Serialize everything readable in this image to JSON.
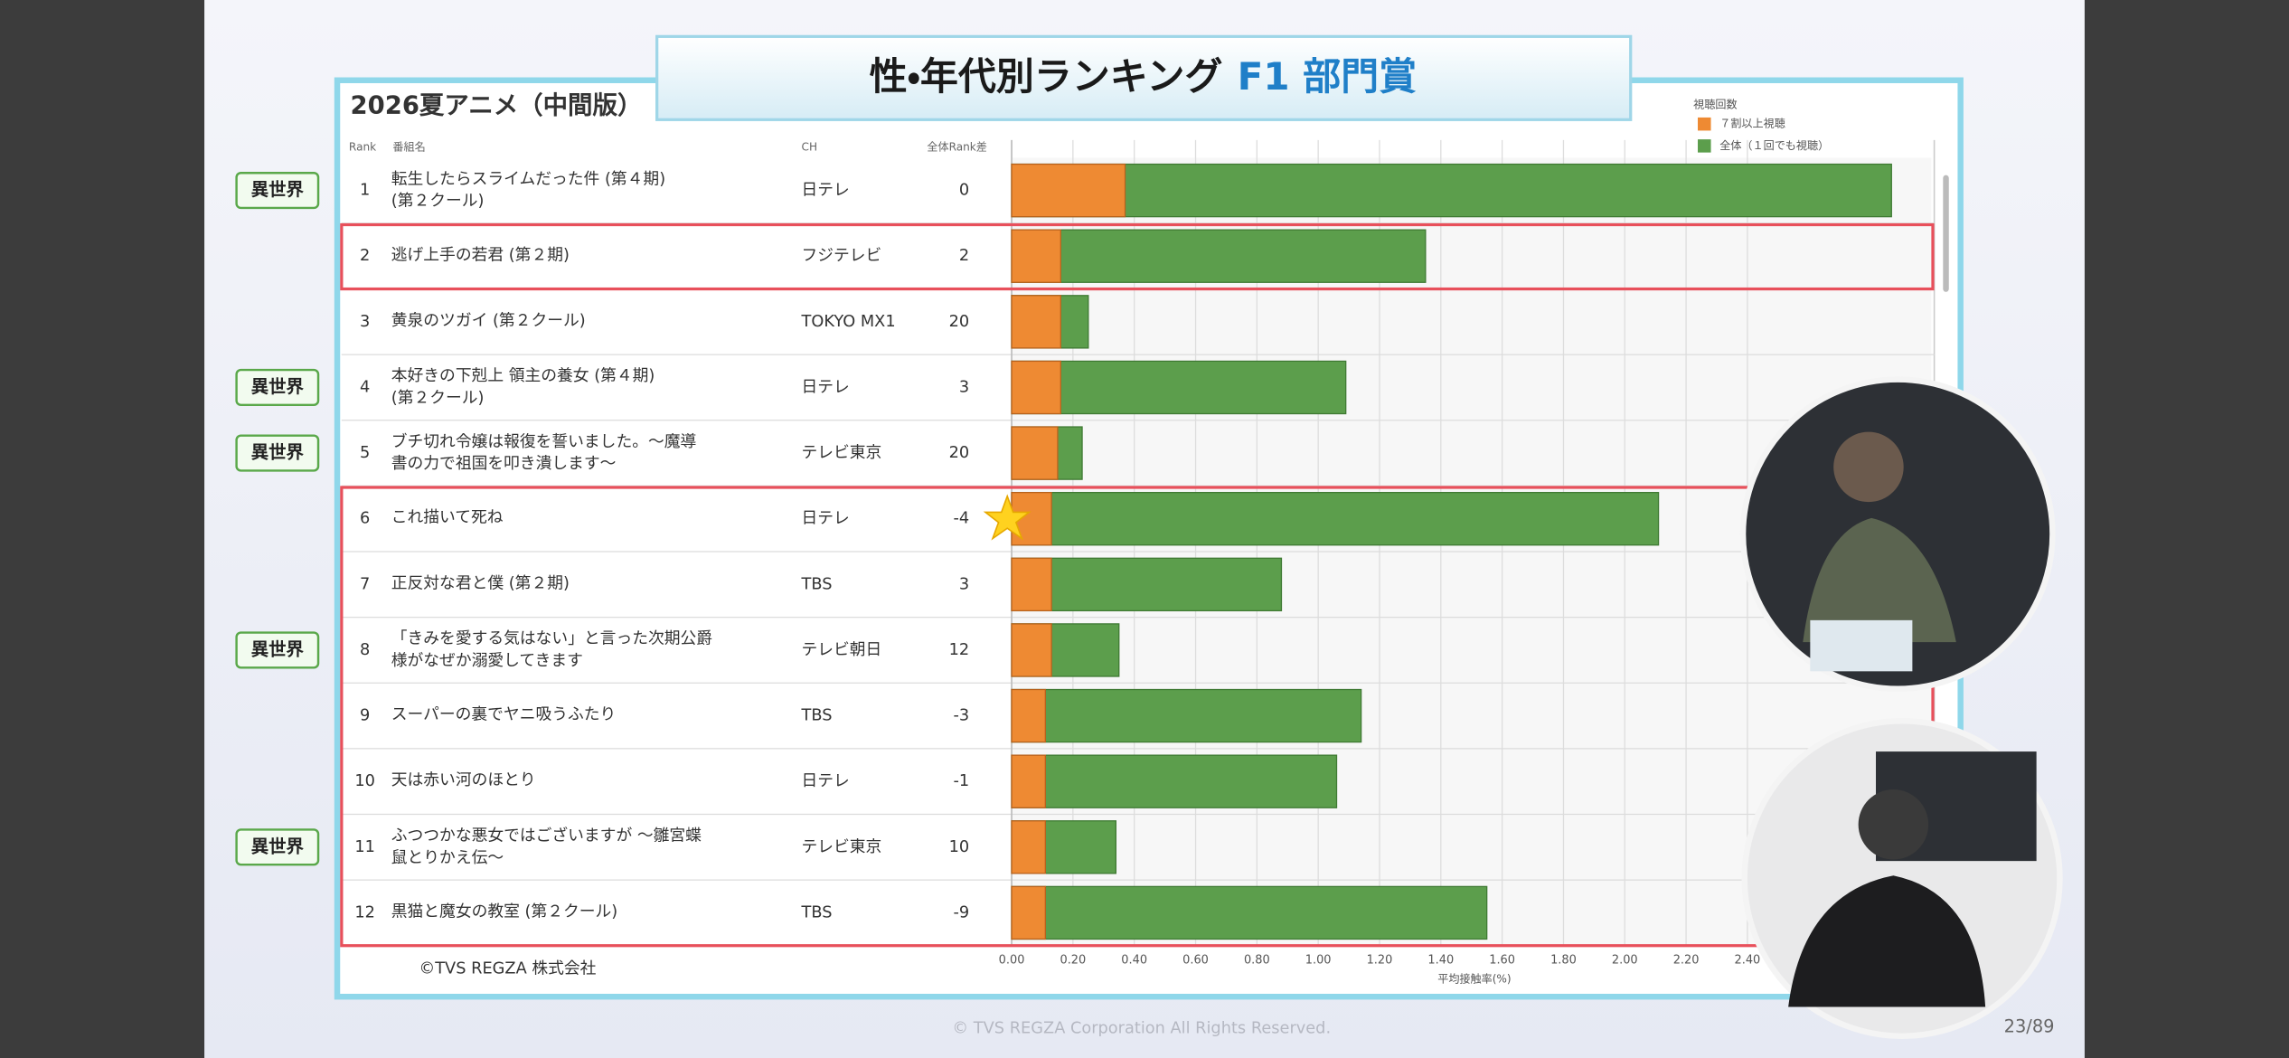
{
  "header": {
    "title_main": "性・年代別ランキング",
    "title_accent": "F1 部門賞",
    "footer": "© TVS REGZA Corporation  All Rights Reserved.",
    "page": "23/89"
  },
  "chart_data": {
    "type": "bar",
    "orientation": "horizontal",
    "title": "2026夏アニメ（中間版）",
    "columns": {
      "rank": "Rank",
      "name": "番組名",
      "ch": "CH",
      "diff": "全体Rank差"
    },
    "ranks": [
      1,
      2,
      3,
      4,
      5,
      6,
      7,
      8,
      9,
      10,
      11,
      12
    ],
    "categories": [
      "転生したらスライムだった件 (第４期)\n(第２クール)",
      "逃げ上手の若君 (第２期)",
      "黄泉のツガイ (第２クール)",
      "本好きの下剋上 領主の養女 (第４期)\n(第２クール)",
      "ブチ切れ令嬢は報復を誓いました。～魔導\n書の力で祖国を叩き潰します～",
      "これ描いて死ね",
      "正反対な君と僕 (第２期)",
      "「きみを愛する気はない」と言った次期公爵\n様がなぜか溺愛してきます",
      "スーパーの裏でヤニ吸うふたり",
      "天は赤い河のほとり",
      "ふつつかな悪女ではございますが ～雛宮蝶\n鼠とりかえ伝～",
      "黒猫と魔女の教室 (第２クール)"
    ],
    "channels": [
      "日テレ",
      "フジテレビ",
      "TOKYO MX1",
      "日テレ",
      "テレビ東京",
      "日テレ",
      "TBS",
      "テレビ朝日",
      "TBS",
      "日テレ",
      "テレビ東京",
      "TBS"
    ],
    "rank_diff": [
      0,
      2,
      20,
      3,
      20,
      -4,
      3,
      12,
      -3,
      -1,
      10,
      -9
    ],
    "tags": [
      "異世界",
      null,
      null,
      "異世界",
      "異世界",
      null,
      null,
      "異世界",
      null,
      null,
      "異世界",
      null
    ],
    "legend_title": "視聴回数",
    "series": [
      {
        "name": "７割以上視聴",
        "color": "#ee8a33",
        "values": [
          0.37,
          0.16,
          0.16,
          0.16,
          0.15,
          0.13,
          0.13,
          0.13,
          0.11,
          0.11,
          0.11,
          0.11
        ]
      },
      {
        "name": "全体（１回でも視聴）",
        "color": "#5c9e4c",
        "values": [
          2.87,
          1.35,
          0.25,
          1.09,
          0.23,
          2.11,
          0.88,
          0.35,
          1.14,
          1.06,
          0.34,
          1.55
        ]
      }
    ],
    "xlabel": "平均接触率(%)",
    "xlim": [
      0,
      3
    ],
    "xticks": [
      {
        "value": 0,
        "label": "0.00"
      },
      {
        "value": 0.2,
        "label": "0.20"
      },
      {
        "value": 0.4,
        "label": "0.40"
      },
      {
        "value": 0.6,
        "label": "0.60"
      },
      {
        "value": 0.8,
        "label": "0.80"
      },
      {
        "value": 1,
        "label": "1.00"
      },
      {
        "value": 1.2,
        "label": "1.20"
      },
      {
        "value": 1.4,
        "label": "1.40"
      },
      {
        "value": 1.6,
        "label": "1.60"
      },
      {
        "value": 1.8,
        "label": "1.80"
      },
      {
        "value": 2,
        "label": "2.00"
      },
      {
        "value": 2.2,
        "label": "2.20"
      },
      {
        "value": 2.4,
        "label": "2.40"
      }
    ],
    "grid": true,
    "source": "©TVS REGZA 株式会社"
  }
}
